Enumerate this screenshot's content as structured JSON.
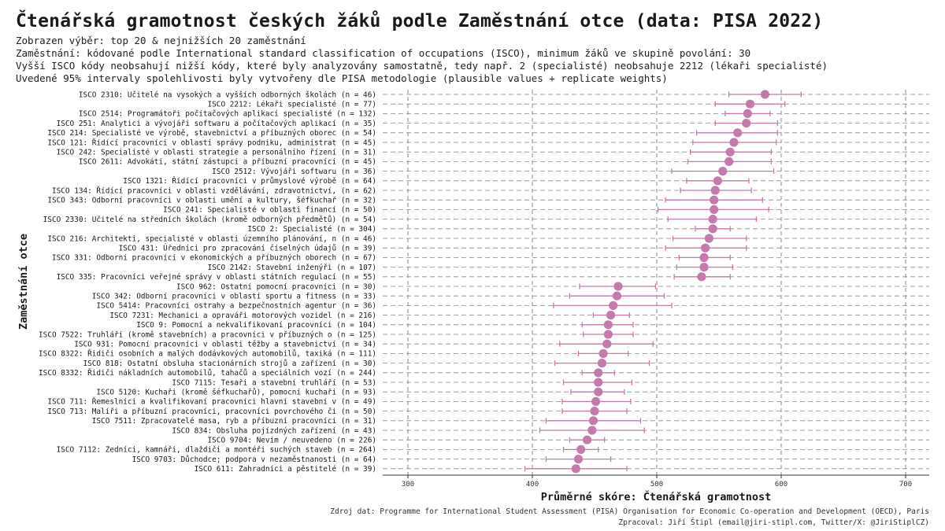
{
  "title": "Čtenářská gramotnost českých žáků podle Zaměstnání otce (data: PISA 2022)",
  "subtitles": [
    "Zobrazen výběr: top 20 & nejnižších 20 zaměstnání",
    "Zaměstnání: kódované podle International standard classification of occupations (ISCO), minimum žáků ve skupině povolání: 30",
    "Vyšší ISCO kódy neobsahují nižší kódy, které byly analyzovány samostatně, tedy např. 2 (specialisté) neobsahuje 2212 (lékaři specialisté)",
    "Uvedené 95% intervaly spolehlivosti byly vytvořeny dle PISA metodologie (plausible values + replicate weights)"
  ],
  "caption": [
    "Zdroj dat: Programme for International Student Assessment (PISA) Organisation for Economic Co-operation and Development (OECD), Paris",
    "Zpracoval: Jiří Štipl (email@jiri-stipl.com, Twitter/X: @JiriStiplCZ)"
  ],
  "colors": {
    "point": "#c47aab",
    "errorbar": "#c47aab",
    "grid": "#8a8a8a",
    "text": "#1a1a1a"
  },
  "chart_data": {
    "type": "scatter",
    "xlabel": "Průměrné skóre: Čtenářská gramotnost",
    "ylabel": "Zaměstnání otce",
    "xlim": [
      280,
      720
    ],
    "xticks": [
      300,
      400,
      500,
      600,
      700
    ],
    "grid": true,
    "rows": [
      {
        "label": "ISCO 2310: Učitelé na vysokých a vyšších odborných školách (n = 46)",
        "mean": 587,
        "lo": 558,
        "hi": 616
      },
      {
        "label": "ISCO 2212: Lékaři specialisté (n = 77)",
        "mean": 575,
        "lo": 547,
        "hi": 603
      },
      {
        "label": "ISCO 2514: Programátoři počítačových aplikací specialisté (n = 132)",
        "mean": 573,
        "lo": 555,
        "hi": 591
      },
      {
        "label": "ISCO 251: Analytici a vývojáři softwaru a počítačových aplikací (n = 35)",
        "mean": 572,
        "lo": 547,
        "hi": 597
      },
      {
        "label": "ISCO 214: Specialisté ve výrobě, stavebnictví a příbuzných oborec (n = 54)",
        "mean": 565,
        "lo": 532,
        "hi": 597
      },
      {
        "label": "ISCO 121: Řídící pracovníci v oblasti správy podniku, administrat (n = 45)",
        "mean": 562,
        "lo": 529,
        "hi": 596
      },
      {
        "label": "ISCO 242: Specialisté v oblasti strategie a personálního řízení (n = 31)",
        "mean": 559,
        "lo": 527,
        "hi": 592
      },
      {
        "label": "ISCO 2611: Advokáti, státní zástupci a příbuzní pracovníci (n = 45)",
        "mean": 558,
        "lo": 525,
        "hi": 592
      },
      {
        "label": "ISCO 2512: Vývojáři softwaru (n = 36)",
        "mean": 553,
        "lo": 512,
        "hi": 594
      },
      {
        "label": "ISCO 1321: Řídící pracovníci v průmyslové výrobě (n = 64)",
        "mean": 549,
        "lo": 524,
        "hi": 574
      },
      {
        "label": "ISCO 134: Řídící pracovníci v oblasti vzdělávání, zdravotnictví, (n = 62)",
        "mean": 547,
        "lo": 519,
        "hi": 576
      },
      {
        "label": "ISCO 343: Odborní pracovníci v oblasti umění a kultury, šéfkuchař (n = 32)",
        "mean": 546,
        "lo": 507,
        "hi": 585
      },
      {
        "label": "ISCO 241: Specialisté v oblasti financí (n = 50)",
        "mean": 546,
        "lo": 501,
        "hi": 590
      },
      {
        "label": "ISCO 2330: Učitelé na středních školách (kromě odborných předmětů) (n = 54)",
        "mean": 545,
        "lo": 509,
        "hi": 580
      },
      {
        "label": "ISCO 2: Specialisté (n = 304)",
        "mean": 545,
        "lo": 531,
        "hi": 559
      },
      {
        "label": "ISCO 216: Architekti, specialisté v oblasti územního plánování, n (n = 46)",
        "mean": 542,
        "lo": 513,
        "hi": 572
      },
      {
        "label": "ISCO 431: Úředníci pro zpracování číselných údajů (n = 39)",
        "mean": 539,
        "lo": 507,
        "hi": 572
      },
      {
        "label": "ISCO 331: Odborní pracovníci v ekonomických a příbuzných oborech (n = 67)",
        "mean": 538,
        "lo": 518,
        "hi": 559
      },
      {
        "label": "ISCO 2142: Stavební inženýři (n = 107)",
        "mean": 538,
        "lo": 516,
        "hi": 561
      },
      {
        "label": "ISCO 335: Pracovníci veřejné správy v oblasti státních regulací (n = 55)",
        "mean": 536,
        "lo": 514,
        "hi": 559
      },
      {
        "label": "ISCO 962: Ostatní pomocní pracovníci (n = 30)",
        "mean": 469,
        "lo": 438,
        "hi": 499
      },
      {
        "label": "ISCO 342: Odborní pracovníci v oblasti sportu a fitness (n = 33)",
        "mean": 468,
        "lo": 430,
        "hi": 506
      },
      {
        "label": "ISCO 5414: Pracovníci ostrahy a bezpečnostních agentur (n = 36)",
        "mean": 465,
        "lo": 417,
        "hi": 512
      },
      {
        "label": "ISCO 7231: Mechanici a opraváři motorových vozidel (n = 216)",
        "mean": 463,
        "lo": 449,
        "hi": 478
      },
      {
        "label": "ISCO 9: Pomocní a nekvalifikovaní pracovníci (n = 104)",
        "mean": 461,
        "lo": 440,
        "hi": 481
      },
      {
        "label": "ISCO 7522: Truhláři (kromě stavebních) a pracovníci v příbuzných o (n = 125)",
        "mean": 461,
        "lo": 441,
        "hi": 481
      },
      {
        "label": "ISCO 931: Pomocní pracovníci v oblasti těžby a stavebnictví (n = 34)",
        "mean": 460,
        "lo": 422,
        "hi": 497
      },
      {
        "label": "ISCO 8322: Řidiči osobních a malých dodávkových automobilů, taxiká (n = 111)",
        "mean": 457,
        "lo": 437,
        "hi": 477
      },
      {
        "label": "ISCO 818: Ostatní obsluha stacionárních strojů a zařízení (n = 30)",
        "mean": 456,
        "lo": 418,
        "hi": 494
      },
      {
        "label": "ISCO 8332: Řidiči nákladních automobilů, tahačů a speciálních vozí (n = 244)",
        "mean": 453,
        "lo": 440,
        "hi": 466
      },
      {
        "label": "ISCO 7115: Tesaři a stavební truhláři (n = 53)",
        "mean": 453,
        "lo": 425,
        "hi": 480
      },
      {
        "label": "ISCO 5120: Kuchaři (kromě šéfkuchařů), pomocní kuchaři (n = 93)",
        "mean": 453,
        "lo": 431,
        "hi": 474
      },
      {
        "label": "ISCO 711: Řemeslníci a kvalifikovaní pracovníci hlavní stavební v (n = 49)",
        "mean": 451,
        "lo": 424,
        "hi": 479
      },
      {
        "label": "ISCO 713: Malíři a příbuzní pracovníci, pracovníci povrchového či (n = 50)",
        "mean": 450,
        "lo": 424,
        "hi": 476
      },
      {
        "label": "ISCO 7511: Zpracovatelé masa, ryb a příbuzní pracovníci (n = 31)",
        "mean": 449,
        "lo": 411,
        "hi": 487
      },
      {
        "label": "ISCO 834: Obsluha pojízdných zařízení (n = 43)",
        "mean": 448,
        "lo": 406,
        "hi": 490
      },
      {
        "label": "ISCO 9704: Nevím / neuvedeno (n = 226)",
        "mean": 444,
        "lo": 430,
        "hi": 458
      },
      {
        "label": "ISCO 7112: Zedníci, kamnáři, dlaždiči a montéři suchých staveb (n = 264)",
        "mean": 439,
        "lo": 425,
        "hi": 453
      },
      {
        "label": "ISCO 9703: Důchodce; podpora v nezaměstnanosti (n = 64)",
        "mean": 437,
        "lo": 411,
        "hi": 463
      },
      {
        "label": "ISCO 611: Zahradníci a pěstitelé (n = 39)",
        "mean": 435,
        "lo": 394,
        "hi": 476
      }
    ]
  }
}
